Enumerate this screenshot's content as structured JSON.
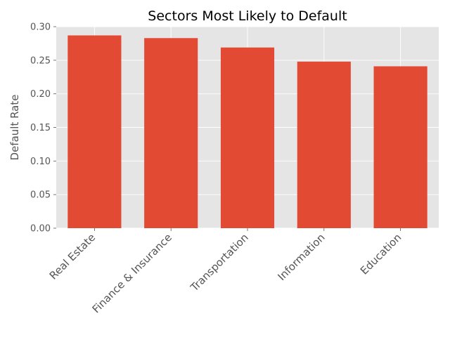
{
  "chart_data": {
    "type": "bar",
    "title": "Sectors Most Likely to Default",
    "xlabel": "",
    "ylabel": "Default Rate",
    "categories": [
      "Real Estate",
      "Finance & Insurance",
      "Transportation",
      "Information",
      "Education"
    ],
    "values": [
      0.287,
      0.283,
      0.269,
      0.248,
      0.241
    ],
    "ylim": [
      0,
      0.3
    ],
    "yticks": [
      "0.00",
      "0.05",
      "0.10",
      "0.15",
      "0.20",
      "0.25",
      "0.30"
    ],
    "grid": true,
    "legend": "none",
    "colors": {
      "bar": "#E24A33",
      "plot_background": "#E5E5E5",
      "grid": "#FFFFFF",
      "tick_text": "#555555",
      "title_text": "#000000"
    }
  }
}
